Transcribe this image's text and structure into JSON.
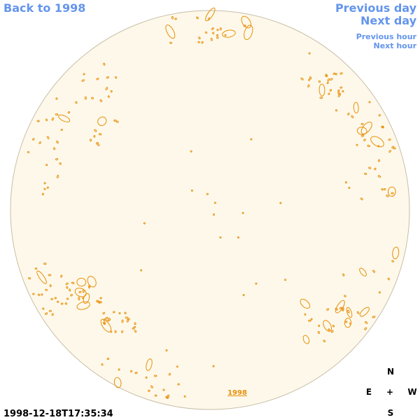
{
  "links": {
    "back": "Back to 1998",
    "previous_day": "Previous day",
    "next_day": "Next day",
    "previous_hour": "Previous hour",
    "next_hour": "Next hour"
  },
  "image": {
    "year_label": "1998"
  },
  "timestamp": "1998-12-18T17:35:34",
  "compass": {
    "north": "N",
    "east": "E",
    "center": "+",
    "west": "W",
    "south": "S"
  }
}
